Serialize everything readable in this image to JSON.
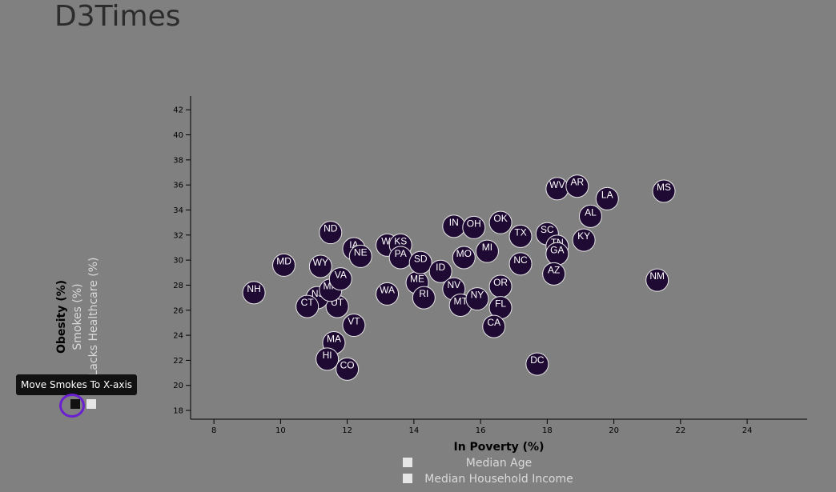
{
  "page": {
    "title": "D3Times"
  },
  "tooltip": {
    "text": "Move Smokes To X-axis"
  },
  "chart_data": {
    "type": "scatter",
    "xlabel": "In Poverty (%)",
    "x_alt_labels": [
      "Median Age",
      "Median Household Income"
    ],
    "ylabel": "Obesity (%)",
    "y_alt_labels": [
      "Smokes (%)",
      "Lacks Healthcare (%)"
    ],
    "xlim": [
      7.3,
      25.8
    ],
    "ylim": [
      17.3,
      43.1
    ],
    "x_ticks": [
      8,
      10,
      12,
      14,
      16,
      18,
      20,
      22,
      24
    ],
    "y_ticks": [
      18,
      20,
      22,
      24,
      26,
      28,
      30,
      32,
      34,
      36,
      38,
      40,
      42
    ],
    "grid": false,
    "marker_color": "#1f0a33",
    "marker_stroke": "#e6e6e6",
    "points": [
      {
        "label": "NH",
        "x": 9.2,
        "y": 27.4
      },
      {
        "label": "MD",
        "x": 10.1,
        "y": 29.6
      },
      {
        "label": "ND",
        "x": 11.5,
        "y": 32.2
      },
      {
        "label": "WY",
        "x": 11.2,
        "y": 29.5
      },
      {
        "label": "UT",
        "x": 11.7,
        "y": 26.3
      },
      {
        "label": "NJ",
        "x": 11.1,
        "y": 27.0
      },
      {
        "label": "CT",
        "x": 10.8,
        "y": 26.3
      },
      {
        "label": "MN",
        "x": 11.5,
        "y": 27.6
      },
      {
        "label": "VA",
        "x": 11.8,
        "y": 28.5
      },
      {
        "label": "MA",
        "x": 11.6,
        "y": 23.4
      },
      {
        "label": "HI",
        "x": 11.4,
        "y": 22.1
      },
      {
        "label": "CO",
        "x": 12.0,
        "y": 21.3
      },
      {
        "label": "VT",
        "x": 12.2,
        "y": 24.8
      },
      {
        "label": "IA",
        "x": 12.2,
        "y": 30.9
      },
      {
        "label": "NE",
        "x": 12.4,
        "y": 30.3
      },
      {
        "label": "WI",
        "x": 13.2,
        "y": 31.2
      },
      {
        "label": "KS",
        "x": 13.6,
        "y": 31.2
      },
      {
        "label": "PA",
        "x": 13.6,
        "y": 30.2
      },
      {
        "label": "WA",
        "x": 13.2,
        "y": 27.3
      },
      {
        "label": "ME",
        "x": 14.1,
        "y": 28.2
      },
      {
        "label": "RI",
        "x": 14.3,
        "y": 27.0
      },
      {
        "label": "SD",
        "x": 14.2,
        "y": 29.8
      },
      {
        "label": "ID",
        "x": 14.8,
        "y": 29.1
      },
      {
        "label": "IN",
        "x": 15.2,
        "y": 32.7
      },
      {
        "label": "OH",
        "x": 15.8,
        "y": 32.6
      },
      {
        "label": "MO",
        "x": 15.5,
        "y": 30.2
      },
      {
        "label": "NV",
        "x": 15.2,
        "y": 27.7
      },
      {
        "label": "MT",
        "x": 15.4,
        "y": 26.4
      },
      {
        "label": "NY",
        "x": 15.9,
        "y": 26.9
      },
      {
        "label": "OK",
        "x": 16.6,
        "y": 33.0
      },
      {
        "label": "MI",
        "x": 16.2,
        "y": 30.7
      },
      {
        "label": "OR",
        "x": 16.6,
        "y": 27.9
      },
      {
        "label": "FL",
        "x": 16.6,
        "y": 26.2
      },
      {
        "label": "CA",
        "x": 16.4,
        "y": 24.7
      },
      {
        "label": "TX",
        "x": 17.2,
        "y": 31.9
      },
      {
        "label": "NC",
        "x": 17.2,
        "y": 29.7
      },
      {
        "label": "SC",
        "x": 18.0,
        "y": 32.1
      },
      {
        "label": "TN",
        "x": 18.3,
        "y": 31.1
      },
      {
        "label": "GA",
        "x": 18.3,
        "y": 30.5
      },
      {
        "label": "AZ",
        "x": 18.2,
        "y": 28.9
      },
      {
        "label": "KY",
        "x": 19.1,
        "y": 31.6
      },
      {
        "label": "WV",
        "x": 18.3,
        "y": 35.7
      },
      {
        "label": "AR",
        "x": 18.9,
        "y": 35.9
      },
      {
        "label": "LA",
        "x": 19.8,
        "y": 34.9
      },
      {
        "label": "AL",
        "x": 19.3,
        "y": 33.5
      },
      {
        "label": "MS",
        "x": 21.5,
        "y": 35.5
      },
      {
        "label": "NM",
        "x": 21.3,
        "y": 28.4
      },
      {
        "label": "DC",
        "x": 17.7,
        "y": 21.7
      }
    ]
  }
}
